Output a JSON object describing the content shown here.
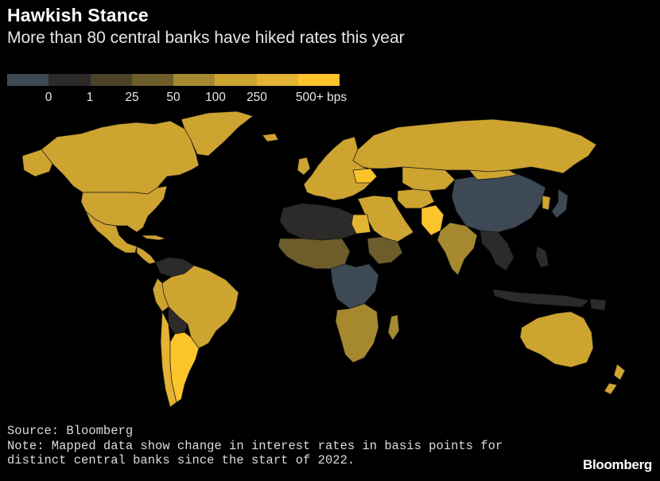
{
  "header": {
    "title": "Hawkish Stance",
    "subtitle": "More than 80 central banks have hiked rates this year"
  },
  "legend": {
    "colors": [
      "#3d4a55",
      "#2c2b29",
      "#4a4229",
      "#6d5d2a",
      "#a6892e",
      "#cea431",
      "#e3b331",
      "#fbc42a"
    ],
    "labels": [
      "0",
      "1",
      "25",
      "50",
      "100",
      "250",
      "500+ bps"
    ]
  },
  "map": {
    "regions": [
      {
        "name": "canada",
        "bin": 5
      },
      {
        "name": "united-states",
        "bin": 5
      },
      {
        "name": "mexico",
        "bin": 5
      },
      {
        "name": "central-america",
        "bin": 5
      },
      {
        "name": "greenland",
        "bin": 5
      },
      {
        "name": "brazil",
        "bin": 5
      },
      {
        "name": "argentina",
        "bin": 7
      },
      {
        "name": "chile",
        "bin": 6
      },
      {
        "name": "bolivia",
        "bin": 1
      },
      {
        "name": "venezuela",
        "bin": 1
      },
      {
        "name": "europe",
        "bin": 5
      },
      {
        "name": "russia",
        "bin": 5
      },
      {
        "name": "ukraine",
        "bin": 7
      },
      {
        "name": "kazakhstan",
        "bin": 5
      },
      {
        "name": "china",
        "bin": 0
      },
      {
        "name": "india",
        "bin": 4
      },
      {
        "name": "pakistan",
        "bin": 7
      },
      {
        "name": "egypt",
        "bin": 6
      },
      {
        "name": "west-africa",
        "bin": 3
      },
      {
        "name": "central-africa",
        "bin": 0
      },
      {
        "name": "southern-africa",
        "bin": 4
      },
      {
        "name": "australia",
        "bin": 5
      },
      {
        "name": "new-zealand",
        "bin": 5
      },
      {
        "name": "southeast-asia",
        "bin": 1
      }
    ]
  },
  "footer": {
    "source": "Source: Bloomberg",
    "note": "Note: Mapped data show change in interest rates in basis points for distinct central banks since the start of 2022.",
    "brand": "Bloomberg"
  }
}
